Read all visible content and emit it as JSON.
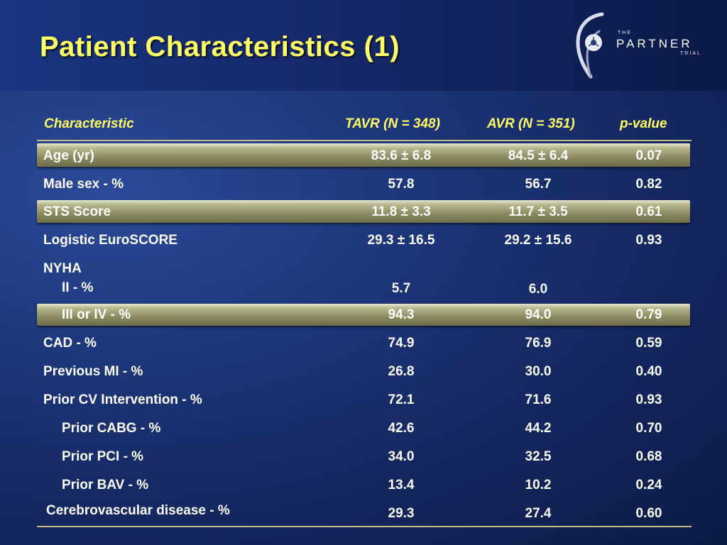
{
  "title": "Patient Characteristics (1)",
  "logo": {
    "line1": "THE",
    "line2": "PARTNER",
    "line3": "TRIAL"
  },
  "table": {
    "headers": [
      "Characteristic",
      "TAVR (N = 348)",
      "AVR (N = 351)",
      "p-value"
    ],
    "rows": [
      {
        "label": "Age (yr)",
        "tavr": "83.6 ± 6.8",
        "avr": "84.5 ± 6.4",
        "p": "0.07"
      },
      {
        "label": "Male sex - %",
        "tavr": "57.8",
        "avr": "56.7",
        "p": "0.82"
      },
      {
        "label": "STS Score",
        "tavr": "11.8 ± 3.3",
        "avr": "11.7 ± 3.5",
        "p": "0.61"
      },
      {
        "label": "Logistic EuroSCORE",
        "tavr": "29.3 ± 16.5",
        "avr": "29.2 ± 15.6",
        "p": "0.93"
      },
      {
        "label": "NYHA",
        "tavr": "",
        "avr": "",
        "p": ""
      },
      {
        "label": "II - %",
        "tavr": "5.7",
        "avr": "6.0",
        "p": ""
      },
      {
        "label": "III or IV - %",
        "tavr": "94.3",
        "avr": "94.0",
        "p": "0.79"
      },
      {
        "label": "CAD - %",
        "tavr": "74.9",
        "avr": "76.9",
        "p": "0.59"
      },
      {
        "label": "Previous MI - %",
        "tavr": "26.8",
        "avr": "30.0",
        "p": "0.40"
      },
      {
        "label": "Prior CV Intervention - %",
        "tavr": "72.1",
        "avr": "71.6",
        "p": "0.93"
      },
      {
        "label": "Prior CABG - %",
        "tavr": "42.6",
        "avr": "44.2",
        "p": "0.70"
      },
      {
        "label": "Prior PCI - %",
        "tavr": "34.0",
        "avr": "32.5",
        "p": "0.68"
      },
      {
        "label": "Prior BAV - %",
        "tavr": "13.4",
        "avr": "10.2",
        "p": "0.24"
      },
      {
        "label": "Cerebrovascular disease - %",
        "tavr": "29.3",
        "avr": "27.4",
        "p": "0.60"
      }
    ]
  },
  "colors": {
    "title": "#ffff66",
    "header_text": "#ffff66",
    "cell_text": "#ffffff",
    "band": "#8b8a62",
    "rule": "#c3bc84",
    "background": "#1d3679"
  }
}
